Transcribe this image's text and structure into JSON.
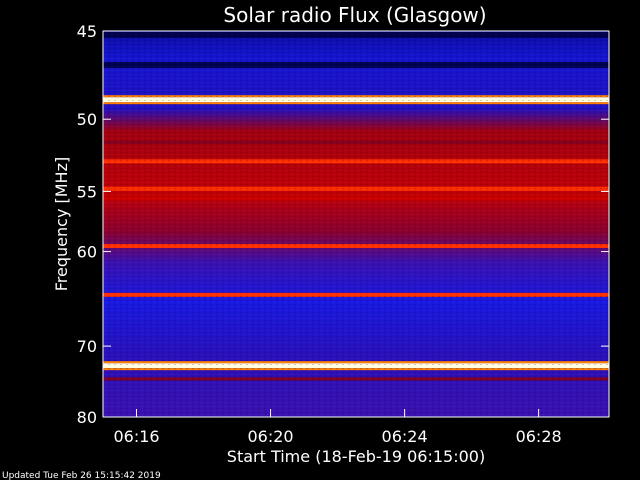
{
  "chart_data": {
    "type": "heatmap",
    "title": "Solar radio Flux (Glasgow)",
    "xlabel": "Start Time (18-Feb-19 06:15:00)",
    "ylabel": "Frequency [MHz]",
    "x_tick_labels": [
      "06:16",
      "06:20",
      "06:24",
      "06:28"
    ],
    "x_tick_minutes": [
      16,
      20,
      24,
      28
    ],
    "xlim_minutes": [
      15,
      30.1
    ],
    "y_tick_labels": [
      "45",
      "50",
      "55",
      "60",
      "70",
      "80"
    ],
    "y_ticks": [
      45,
      50,
      55,
      60,
      70,
      80
    ],
    "ylim": [
      45,
      80
    ],
    "y_scale": "reciprocal (frequency increases downward)",
    "colormap": "blue-red-yellow-white",
    "background_level": "blue",
    "bands": [
      {
        "freq": 45.2,
        "level": "dark blue"
      },
      {
        "freq": 46.8,
        "level": "dark blue"
      },
      {
        "freq": 48.8,
        "level": "saturated"
      },
      {
        "freq": 51.5,
        "level": "dark red"
      },
      {
        "freq": 52.8,
        "level": "high"
      },
      {
        "freq": 54.8,
        "level": "high"
      },
      {
        "freq": 55.5,
        "level": "red"
      },
      {
        "freq": 59.5,
        "level": "high"
      },
      {
        "freq": 64.2,
        "level": "high"
      },
      {
        "freq": 72.5,
        "level": "saturated"
      },
      {
        "freq": 74.3,
        "level": "dark red"
      }
    ]
  },
  "footer": {
    "updated": "Updated Tue Feb 26 15:15:42 2019"
  },
  "colors": {
    "background": "#000000",
    "axis": "#ffffff",
    "band_saturated": "#ffffe0",
    "band_high": "#ff3000",
    "band_red": "#c80000",
    "band_dark_red": "#800020",
    "base_blue": "#1a1adc",
    "deep_blue": "#000050"
  }
}
